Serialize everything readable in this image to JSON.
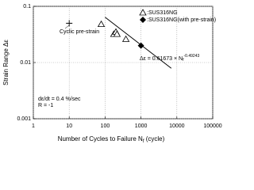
{
  "chart_data": {
    "type": "scatter",
    "xlabel": "Number of Cycles to Failure N",
    "xlabel_sub": "f",
    "xlabel_end": " (cycle)",
    "ylabel": "Strain Range Δε",
    "xlim": [
      1,
      100000
    ],
    "xticks": [
      1,
      10,
      100,
      1000,
      10000,
      100000
    ],
    "ylim": [
      0.001,
      0.1
    ],
    "yticks": [
      0.001,
      0.01,
      0.1
    ],
    "log_x": true,
    "log_y": true,
    "grid": true,
    "series": [
      {
        "name": ":SUS316NG",
        "color": "#000000",
        "marker": "triangle",
        "x": [
          78,
          175,
          200,
          215,
          380
        ],
        "values": [
          0.048,
          0.032,
          0.035,
          0.032,
          0.026
        ]
      },
      {
        "name": ":SUS316NG(with pre-strain)",
        "color": "#000000",
        "marker": "diamond",
        "x": [
          1000
        ],
        "values": [
          0.02
        ]
      },
      {
        "color": "#000000",
        "marker": "plus",
        "x": [
          10
        ],
        "values": [
          0.05
        ]
      },
      {
        "color": "#000000",
        "marker": "none",
        "x": [
          100,
          7000
        ],
        "values": [
          0.064,
          0.0079
        ]
      }
    ],
    "annotations": {
      "pre_strain": "Cyclic pre-strain",
      "rate": "dε/dt = 0.4 %/sec",
      "ratio": "R = -1",
      "equation": "Δε = 0.61673 × N",
      "equation_sub": "f",
      "equation_exp": "-0.49243"
    }
  }
}
